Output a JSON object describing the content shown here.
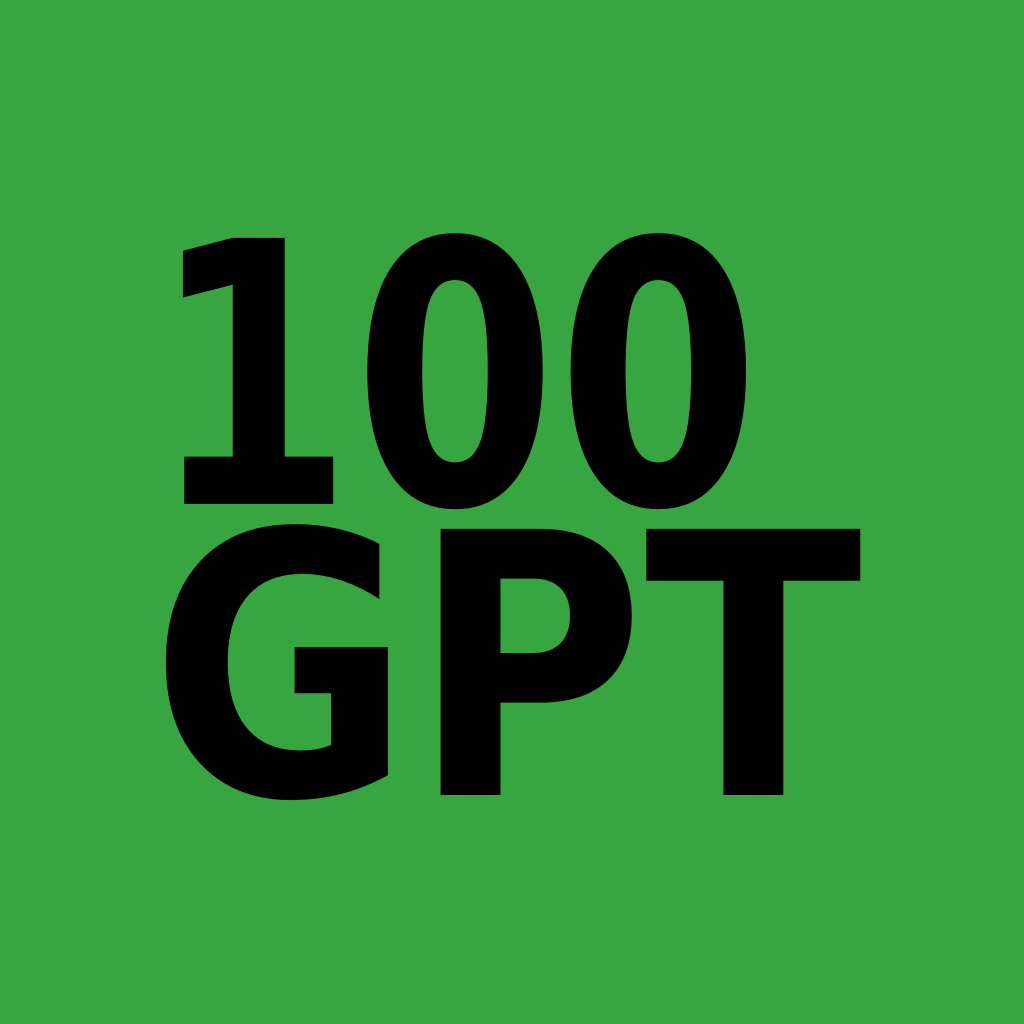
{
  "logo": {
    "line1": "100",
    "line2": "GPT"
  },
  "colors": {
    "background": "#38a640",
    "text": "#000000"
  }
}
